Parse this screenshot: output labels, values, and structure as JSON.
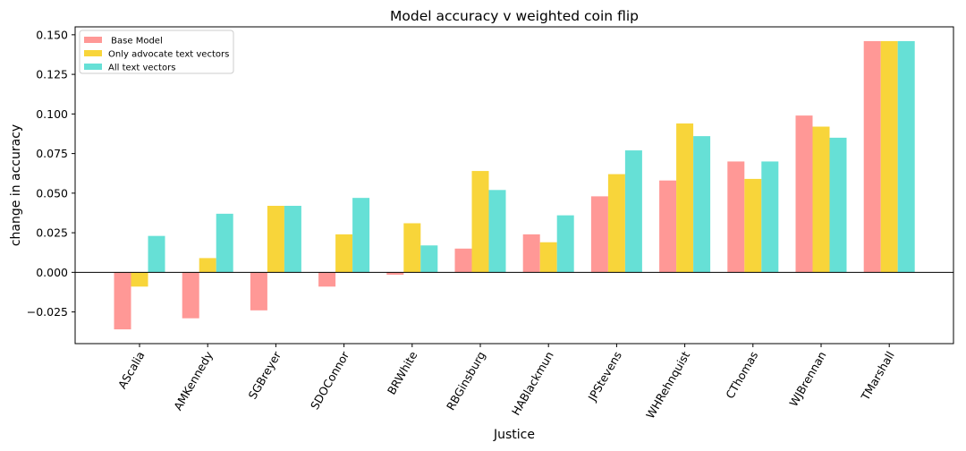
{
  "chart_data": {
    "type": "bar",
    "title": "Model accuracy v weighted coin flip",
    "xlabel": "Justice",
    "ylabel": "change in accuracy",
    "ylim": [
      -0.045,
      0.155
    ],
    "yticks": [
      "−0.025",
      "0.000",
      "0.025",
      "0.050",
      "0.075",
      "0.100",
      "0.125",
      "0.150"
    ],
    "ytick_values": [
      -0.025,
      0.0,
      0.025,
      0.05,
      0.075,
      0.1,
      0.125,
      0.15
    ],
    "categories": [
      "AScalia",
      "AMKennedy",
      "SGBreyer",
      "SDOConnor",
      "BRWhite",
      "RBGinsburg",
      "HABlackmun",
      "JPStevens",
      "WHRehnquist",
      "CThomas",
      "WJBrennan",
      "TMarshall"
    ],
    "series": [
      {
        "name": " Base Model",
        "color": "#ff9896",
        "values": [
          -0.036,
          -0.029,
          -0.024,
          -0.009,
          -0.0015,
          0.015,
          0.024,
          0.048,
          0.058,
          0.07,
          0.099,
          0.146
        ]
      },
      {
        "name": "Only advocate text vectors",
        "color": "#f8d53a",
        "values": [
          -0.009,
          0.009,
          0.042,
          0.024,
          0.031,
          0.064,
          0.019,
          0.062,
          0.094,
          0.059,
          0.092,
          0.146
        ]
      },
      {
        "name": "All text vectors",
        "color": "#66e0d6",
        "values": [
          0.023,
          0.037,
          0.042,
          0.047,
          0.017,
          0.052,
          0.036,
          0.077,
          0.086,
          0.07,
          0.085,
          0.146
        ]
      }
    ],
    "grid": false,
    "legend_position": "top-left",
    "zero_line": true
  }
}
